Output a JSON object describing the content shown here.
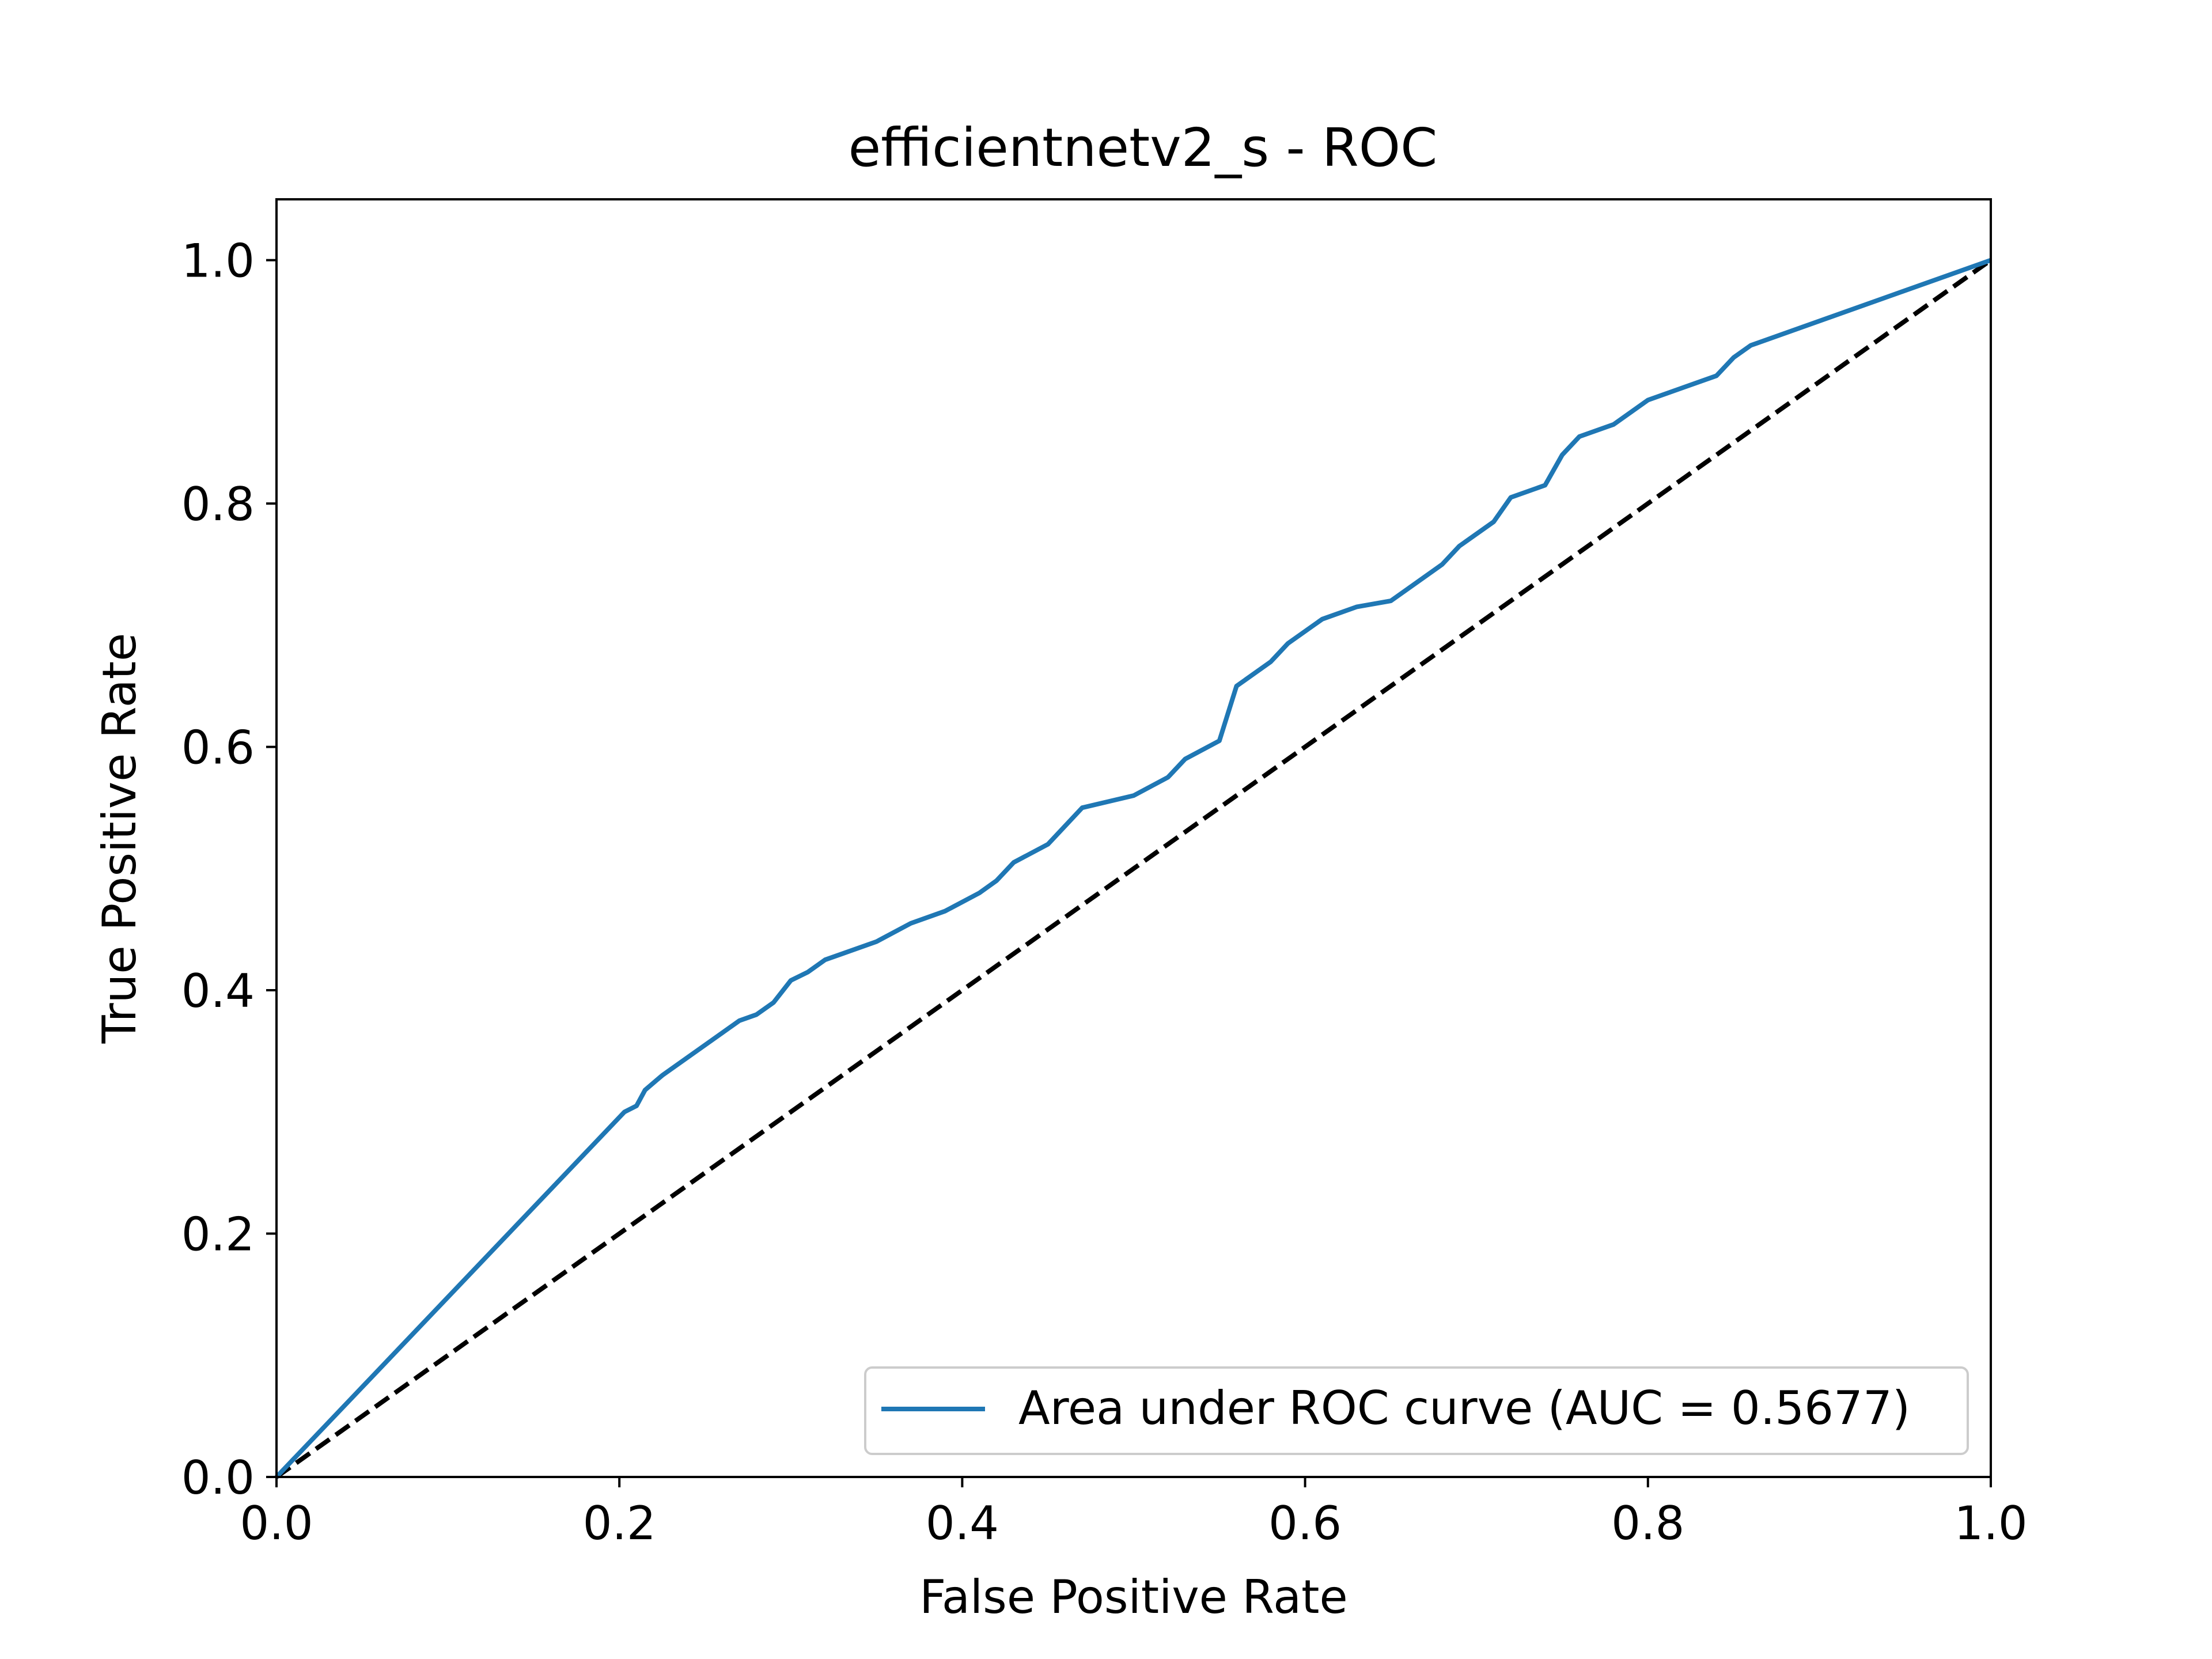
{
  "chart_data": {
    "type": "line",
    "title": "efficientnetv2_s - ROC",
    "xlabel": "False Positive Rate",
    "ylabel": "True Positive Rate",
    "xlim": [
      0.0,
      1.0
    ],
    "ylim": [
      0.0,
      1.05
    ],
    "xticks": [
      0.0,
      0.2,
      0.4,
      0.6,
      0.8,
      1.0
    ],
    "yticks": [
      0.0,
      0.2,
      0.4,
      0.6,
      0.8,
      1.0
    ],
    "xtick_labels": [
      "0.0",
      "0.2",
      "0.4",
      "0.6",
      "0.8",
      "1.0"
    ],
    "ytick_labels": [
      "0.0",
      "0.2",
      "0.4",
      "0.6",
      "0.8",
      "1.0"
    ],
    "grid": false,
    "legend_position": "bottom-right",
    "series": [
      {
        "name": "Area under ROC curve (AUC = 0.5677)",
        "color": "#1f77b4",
        "style": "solid",
        "x": [
          0.0,
          0.203,
          0.21,
          0.215,
          0.225,
          0.24,
          0.25,
          0.26,
          0.27,
          0.28,
          0.29,
          0.3,
          0.31,
          0.32,
          0.33,
          0.35,
          0.37,
          0.39,
          0.41,
          0.42,
          0.43,
          0.45,
          0.46,
          0.47,
          0.5,
          0.52,
          0.53,
          0.55,
          0.56,
          0.58,
          0.59,
          0.61,
          0.63,
          0.65,
          0.66,
          0.68,
          0.69,
          0.71,
          0.72,
          0.74,
          0.75,
          0.76,
          0.78,
          0.8,
          0.82,
          0.84,
          0.85,
          0.86,
          1.0
        ],
        "y": [
          0.0,
          0.3,
          0.305,
          0.318,
          0.33,
          0.345,
          0.355,
          0.365,
          0.375,
          0.38,
          0.39,
          0.408,
          0.415,
          0.425,
          0.43,
          0.44,
          0.455,
          0.465,
          0.48,
          0.49,
          0.505,
          0.52,
          0.535,
          0.55,
          0.56,
          0.575,
          0.59,
          0.605,
          0.65,
          0.67,
          0.685,
          0.705,
          0.715,
          0.72,
          0.73,
          0.75,
          0.765,
          0.785,
          0.805,
          0.815,
          0.84,
          0.855,
          0.865,
          0.885,
          0.895,
          0.905,
          0.92,
          0.93,
          1.0
        ]
      },
      {
        "name": "",
        "color": "#000000",
        "style": "dashed",
        "x": [
          0.0,
          1.0
        ],
        "y": [
          0.0,
          1.0
        ]
      }
    ]
  }
}
